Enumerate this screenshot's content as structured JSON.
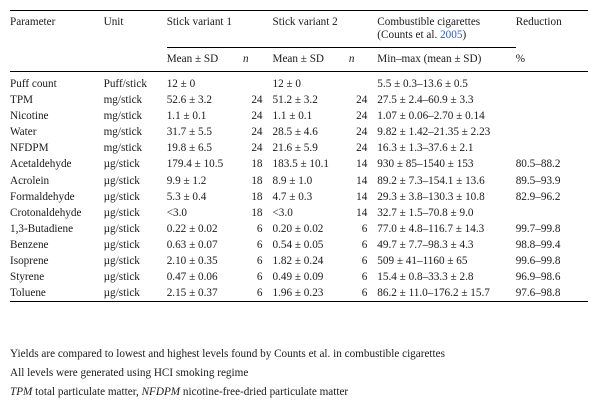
{
  "header": {
    "parameter": "Parameter",
    "unit": "Unit",
    "variant1": "Stick variant 1",
    "variant2": "Stick variant 2",
    "cig_line1": "Combustible cigarettes",
    "cig_line2_prefix": "(Counts et al. ",
    "cig_ref_year": "2005",
    "cig_line2_suffix": ")",
    "reduction": "Reduction",
    "mean_sd_1": "Mean ± SD",
    "n_1": "n",
    "mean_sd_2": "Mean ± SD",
    "n_2": "n",
    "minmax": "Min–max (mean ± SD)",
    "percent": "%"
  },
  "rows": [
    {
      "param": "Puff count",
      "unit": "Puff/stick",
      "m1": "12 ± 0",
      "n1": "",
      "m2": "12 ± 0",
      "n2": "",
      "cig": "5.5 ± 0.3–13.6 ± 0.5",
      "red": ""
    },
    {
      "param": "TPM",
      "unit": "mg/stick",
      "m1": "52.6 ± 3.2",
      "n1": "24",
      "m2": "51.2 ± 3.2",
      "n2": "24",
      "cig": "27.5 ± 2.4–60.9 ± 3.3",
      "red": ""
    },
    {
      "param": "Nicotine",
      "unit": "mg/stick",
      "m1": "1.1 ± 0.1",
      "n1": "24",
      "m2": "1.1 ± 0.1",
      "n2": "24",
      "cig": "1.07 ± 0.06–2.70 ± 0.14",
      "red": ""
    },
    {
      "param": "Water",
      "unit": "mg/stick",
      "m1": "31.7 ± 5.5",
      "n1": "24",
      "m2": "28.5 ± 4.6",
      "n2": "24",
      "cig": "9.82 ± 1.42–21.35 ± 2.23",
      "red": ""
    },
    {
      "param": "NFDPM",
      "unit": "mg/stick",
      "m1": "19.8 ± 6.5",
      "n1": "24",
      "m2": "21.6 ± 5.9",
      "n2": "24",
      "cig": "16.3 ± 1.3–37.6 ± 2.1",
      "red": ""
    },
    {
      "param": "Acetaldehyde",
      "unit": "µg/stick",
      "m1": "179.4 ± 10.5",
      "n1": "18",
      "m2": "183.5 ± 10.1",
      "n2": "14",
      "cig": "930 ± 85–1540 ± 153",
      "red": "80.5–88.2"
    },
    {
      "param": "Acrolein",
      "unit": "µg/stick",
      "m1": "9.9 ± 1.2",
      "n1": "18",
      "m2": "8.9 ± 1.0",
      "n2": "14",
      "cig": "89.2 ± 7.3–154.1 ± 13.6",
      "red": "89.5–93.9"
    },
    {
      "param": "Formaldehyde",
      "unit": "µg/stick",
      "m1": "5.3 ± 0.4",
      "n1": "18",
      "m2": "4.7 ± 0.3",
      "n2": "14",
      "cig": "29.3 ± 3.8–130.3 ± 10.8",
      "red": "82.9–96.2"
    },
    {
      "param": "Crotonaldehyde",
      "unit": "µg/stick",
      "m1": "<3.0",
      "n1": "18",
      "m2": "<3.0",
      "n2": "14",
      "cig": "32.7 ± 1.5–70.8 ± 9.0",
      "red": ""
    },
    {
      "param": "1,3-Butadiene",
      "unit": "µg/stick",
      "m1": "0.22 ± 0.02",
      "n1": "6",
      "m2": "0.20 ± 0.02",
      "n2": "6",
      "cig": "77.0 ± 4.8–116.7 ± 14.3",
      "red": "99.7–99.8"
    },
    {
      "param": "Benzene",
      "unit": "µg/stick",
      "m1": "0.63 ± 0.07",
      "n1": "6",
      "m2": "0.54 ± 0.05",
      "n2": "6",
      "cig": "49.7 ± 7.7–98.3 ± 4.3",
      "red": "98.8–99.4"
    },
    {
      "param": "Isoprene",
      "unit": "µg/stick",
      "m1": "2.10 ± 0.35",
      "n1": "6",
      "m2": "1.82 ± 0.24",
      "n2": "6",
      "cig": "509 ± 41–1160 ± 65",
      "red": "99.6–99.8"
    },
    {
      "param": "Styrene",
      "unit": "µg/stick",
      "m1": "0.47 ± 0.06",
      "n1": "6",
      "m2": "0.49 ± 0.09",
      "n2": "6",
      "cig": "15.4 ± 0.8–33.3 ± 2.8",
      "red": "96.9–98.6"
    },
    {
      "param": "Toluene",
      "unit": "µg/stick",
      "m1": "2.15 ± 0.37",
      "n1": "6",
      "m2": "1.96 ± 0.23",
      "n2": "6",
      "cig": "86.2 ± 11.0–176.2 ± 15.7",
      "red": "97.6–98.8"
    }
  ],
  "notes": {
    "line1": "Yields are compared to lowest and highest levels found by Counts et al. in combustible cigarettes",
    "line2": "All levels were generated using HCI smoking regime",
    "abbr1": "TPM",
    "abbr1_def": " total particulate matter, ",
    "abbr2": "NFDPM",
    "abbr2_def": " nicotine-free-dried particulate matter"
  }
}
